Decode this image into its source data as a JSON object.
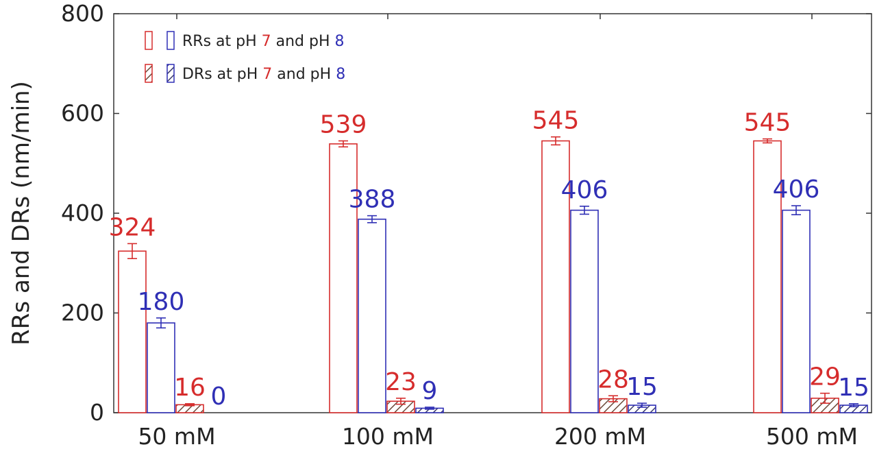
{
  "chart_data": {
    "type": "bar",
    "title": "",
    "xlabel": "",
    "ylabel": "RRs and DRs (nm/min)",
    "ylim": [
      0,
      800
    ],
    "yticks": [
      0,
      200,
      400,
      600,
      800
    ],
    "categories": [
      "50 mM",
      "100 mM",
      "200 mM",
      "500 mM"
    ],
    "grid": false,
    "legend_position": "top-left",
    "legend": [
      {
        "prefix": "RRs at pH ",
        "v1": "7",
        "mid": " and pH ",
        "v2": "8"
      },
      {
        "prefix": "DRs at pH ",
        "v1": "7",
        "mid": " and pH ",
        "v2": "8"
      }
    ],
    "series": [
      {
        "metric": "RR",
        "pH": "7",
        "pattern": "hollow",
        "color": "#d62c2c",
        "values": [
          324,
          539,
          545,
          545
        ],
        "errors": [
          15,
          6,
          8,
          4
        ],
        "labels": [
          "324",
          "539",
          "545",
          "545"
        ]
      },
      {
        "metric": "RR",
        "pH": "8",
        "pattern": "hollow",
        "color": "#2f2fb5",
        "values": [
          180,
          388,
          406,
          406
        ],
        "errors": [
          10,
          7,
          8,
          9
        ],
        "labels": [
          "180",
          "388",
          "406",
          "406"
        ]
      },
      {
        "metric": "DR",
        "pH": "7",
        "pattern": "hatched",
        "color": "#d62c2c",
        "values": [
          16,
          23,
          28,
          29
        ],
        "errors": [
          2,
          6,
          6,
          10
        ],
        "labels": [
          "16",
          "23",
          "28",
          "29"
        ]
      },
      {
        "metric": "DR",
        "pH": "8",
        "pattern": "hatched",
        "color": "#2f2fb5",
        "values": [
          0,
          9,
          15,
          15
        ],
        "errors": [
          0,
          2,
          4,
          3
        ],
        "labels": [
          "0",
          "9",
          "15",
          "15"
        ]
      }
    ]
  }
}
